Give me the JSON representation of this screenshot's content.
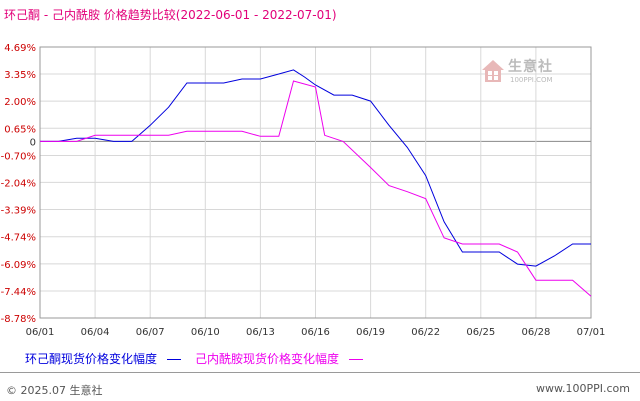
{
  "header": {
    "title": "环己酮 - 己内酰胺 价格趋势比较(2022-06-01 - 2022-07-01)"
  },
  "watermark": {
    "name": "生意社",
    "url": "100PPI.COM"
  },
  "footer": {
    "copyright": "© 2025.07 生意社",
    "url": "www.100PPI.com"
  },
  "chart_data": {
    "type": "line",
    "title": "环己酮 - 己内酰胺 价格趋势比较(2022-06-01 - 2022-07-01)",
    "ylim": [
      -8.78,
      4.69
    ],
    "y_ticks": [
      "4.69%",
      "3.35%",
      "2.00%",
      "0.65%",
      "0",
      "-0.70%",
      "-2.04%",
      "-3.39%",
      "-4.74%",
      "-6.09%",
      "-7.44%",
      "-8.78%"
    ],
    "y_tick_values": [
      4.69,
      3.35,
      2.0,
      0.65,
      0,
      -0.7,
      -2.04,
      -3.39,
      -4.74,
      -6.09,
      -7.44,
      -8.78
    ],
    "x_ticks": [
      "06/01",
      "06/04",
      "06/07",
      "06/10",
      "06/13",
      "06/16",
      "06/19",
      "06/22",
      "06/25",
      "06/28",
      "07/01"
    ],
    "x_tick_days": [
      1,
      4,
      7,
      10,
      13,
      16,
      19,
      22,
      25,
      28,
      31
    ],
    "grid": true,
    "legend_position": "bottom-left",
    "series": [
      {
        "name": "环己酮现货价格变化幅度",
        "color": "#0000dd",
        "points": [
          [
            1,
            0
          ],
          [
            2,
            0
          ],
          [
            3,
            0.15
          ],
          [
            4,
            0.15
          ],
          [
            5,
            0
          ],
          [
            6,
            0
          ],
          [
            7,
            0.8
          ],
          [
            8,
            1.7
          ],
          [
            9,
            2.9
          ],
          [
            10,
            2.9
          ],
          [
            11,
            2.9
          ],
          [
            12,
            3.1
          ],
          [
            13,
            3.1
          ],
          [
            14,
            3.35
          ],
          [
            14.8,
            3.55
          ],
          [
            15.4,
            3.2
          ],
          [
            16,
            2.8
          ],
          [
            17,
            2.3
          ],
          [
            18,
            2.3
          ],
          [
            19,
            2.0
          ],
          [
            20,
            0.8
          ],
          [
            21,
            -0.3
          ],
          [
            22,
            -1.7
          ],
          [
            23,
            -4.0
          ],
          [
            24,
            -5.5
          ],
          [
            25,
            -5.5
          ],
          [
            26,
            -5.5
          ],
          [
            27,
            -6.1
          ],
          [
            28,
            -6.2
          ],
          [
            29,
            -5.7
          ],
          [
            30,
            -5.1
          ],
          [
            31,
            -5.1
          ]
        ]
      },
      {
        "name": "己内酰胺现货价格变化幅度",
        "color": "#ee00ee",
        "points": [
          [
            1,
            0
          ],
          [
            2,
            0
          ],
          [
            3,
            0
          ],
          [
            4,
            0.3
          ],
          [
            5,
            0.3
          ],
          [
            6,
            0.3
          ],
          [
            7,
            0.3
          ],
          [
            8,
            0.3
          ],
          [
            9,
            0.5
          ],
          [
            10,
            0.5
          ],
          [
            11,
            0.5
          ],
          [
            12,
            0.5
          ],
          [
            13,
            0.25
          ],
          [
            14,
            0.25
          ],
          [
            14.8,
            3.0
          ],
          [
            16,
            2.7
          ],
          [
            16.5,
            0.3
          ],
          [
            17.5,
            0.0
          ],
          [
            19,
            -1.3
          ],
          [
            20,
            -2.2
          ],
          [
            21,
            -2.5
          ],
          [
            22,
            -2.85
          ],
          [
            23,
            -4.8
          ],
          [
            24,
            -5.1
          ],
          [
            25,
            -5.1
          ],
          [
            26,
            -5.1
          ],
          [
            27,
            -5.5
          ],
          [
            28,
            -6.9
          ],
          [
            29,
            -6.9
          ],
          [
            30,
            -6.9
          ],
          [
            31,
            -7.7
          ]
        ]
      }
    ]
  }
}
